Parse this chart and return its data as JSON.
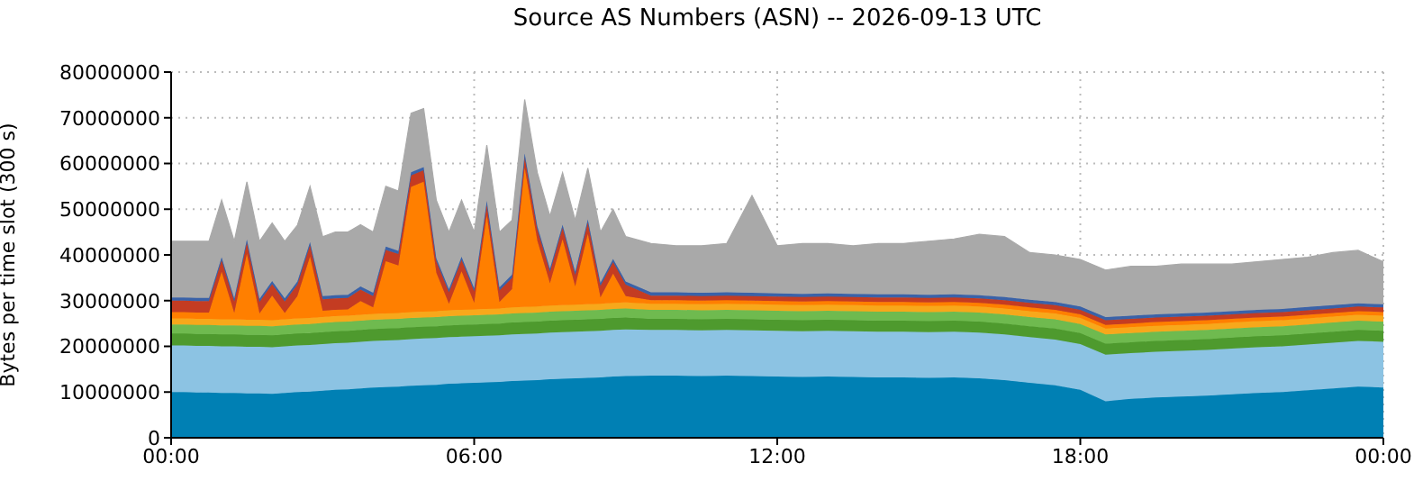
{
  "chart_data": {
    "type": "area",
    "stacked": true,
    "title": "Source AS Numbers (ASN) -- 2026-09-13 UTC",
    "ylabel": "Bytes per time slot (300 s)",
    "x": [
      0,
      0.25,
      0.5,
      0.75,
      1,
      1.25,
      1.5,
      1.75,
      2,
      2.25,
      2.5,
      2.75,
      3,
      3.25,
      3.5,
      3.75,
      4,
      4.25,
      4.5,
      4.75,
      5,
      5.25,
      5.5,
      5.75,
      6,
      6.25,
      6.5,
      6.75,
      7,
      7.25,
      7.5,
      7.75,
      8,
      8.25,
      8.5,
      8.75,
      9,
      9.5,
      10,
      10.5,
      11,
      11.5,
      12,
      12.5,
      13,
      13.5,
      14,
      14.5,
      15,
      15.5,
      16,
      16.5,
      17,
      17.5,
      18,
      18.5,
      19,
      19.5,
      20,
      20.5,
      21,
      21.5,
      22,
      22.5,
      23,
      23.5,
      24
    ],
    "xlim": [
      0,
      24
    ],
    "xticks": [
      {
        "value": 0,
        "label": "00:00"
      },
      {
        "value": 6,
        "label": "06:00"
      },
      {
        "value": 12,
        "label": "12:00"
      },
      {
        "value": 18,
        "label": "18:00"
      },
      {
        "value": 24,
        "label": "00:00"
      }
    ],
    "ylim": [
      0,
      80000000
    ],
    "yticks": [
      0,
      10000000,
      20000000,
      30000000,
      40000000,
      50000000,
      60000000,
      70000000,
      80000000
    ],
    "grid": true,
    "series": [
      {
        "color": "#0080b4",
        "values": [
          10000000.0,
          10000000.0,
          9900000.0,
          9900000.0,
          9800000.0,
          9800000.0,
          9700000.0,
          9700000.0,
          9600000.0,
          9800000.0,
          10000000.0,
          10100000.0,
          10300000.0,
          10500000.0,
          10600000.0,
          10800000.0,
          11000000.0,
          11100000.0,
          11200000.0,
          11400000.0,
          11500000.0,
          11600000.0,
          11800000.0,
          11900000.0,
          12000000.0,
          12100000.0,
          12200000.0,
          12400000.0,
          12500000.0,
          12600000.0,
          12800000.0,
          12900000.0,
          13000000.0,
          13100000.0,
          13200000.0,
          13400000.0,
          13500000.0,
          13600000.0,
          13600000.0,
          13500000.0,
          13600000.0,
          13500000.0,
          13400000.0,
          13300000.0,
          13400000.0,
          13300000.0,
          13200000.0,
          13200000.0,
          13100000.0,
          13200000.0,
          13000000.0,
          12600000.0,
          12000000.0,
          11500000.0,
          10500000.0,
          8000000.0,
          8500000.0,
          8800000.0,
          9000000.0,
          9200000.0,
          9500000.0,
          9800000.0,
          10000000.0,
          10400000.0,
          10800000.0,
          11200000.0,
          11000000.0
        ]
      },
      {
        "color": "#8cc3e3",
        "values": [
          10200000.0,
          10200000.0,
          10200000.0,
          10200000.0,
          10200000.0,
          10200000.0,
          10200000.0,
          10200000.0,
          10200000.0,
          10200000.0,
          10200000.0,
          10200000.0,
          10200000.0,
          10200000.0,
          10200000.0,
          10200000.0,
          10200000.0,
          10200000.0,
          10200000.0,
          10200000.0,
          10200000.0,
          10200000.0,
          10200000.0,
          10200000.0,
          10200000.0,
          10200000.0,
          10200000.0,
          10200000.0,
          10200000.0,
          10200000.0,
          10200000.0,
          10200000.0,
          10200000.0,
          10200000.0,
          10200000.0,
          10200000.0,
          10200000.0,
          10000000.0,
          10000000.0,
          10000000.0,
          10000000.0,
          10000000.0,
          10000000.0,
          10000000.0,
          10000000.0,
          10000000.0,
          10000000.0,
          10000000.0,
          10000000.0,
          10000000.0,
          10000000.0,
          10000000.0,
          10000000.0,
          10000000.0,
          10000000.0,
          10200000.0,
          10000000.0,
          10000000.0,
          10000000.0,
          10000000.0,
          10000000.0,
          10000000.0,
          10000000.0,
          10000000.0,
          10000000.0,
          10000000.0,
          10000000.0
        ]
      },
      {
        "color": "#4e9a2e",
        "values": [
          2600000.0,
          2600000.0,
          2600000.0,
          2600000.0,
          2600000.0,
          2600000.0,
          2600000.0,
          2600000.0,
          2600000.0,
          2600000.0,
          2600000.0,
          2600000.0,
          2600000.0,
          2600000.0,
          2600000.0,
          2600000.0,
          2600000.0,
          2600000.0,
          2600000.0,
          2600000.0,
          2600000.0,
          2600000.0,
          2600000.0,
          2600000.0,
          2600000.0,
          2600000.0,
          2600000.0,
          2600000.0,
          2600000.0,
          2600000.0,
          2600000.0,
          2600000.0,
          2600000.0,
          2600000.0,
          2600000.0,
          2600000.0,
          2600000.0,
          2400000.0,
          2400000.0,
          2400000.0,
          2400000.0,
          2400000.0,
          2400000.0,
          2400000.0,
          2400000.0,
          2400000.0,
          2400000.0,
          2400000.0,
          2400000.0,
          2400000.0,
          2400000.0,
          2400000.0,
          2400000.0,
          2400000.0,
          2400000.0,
          2400000.0,
          2400000.0,
          2400000.0,
          2400000.0,
          2400000.0,
          2400000.0,
          2400000.0,
          2400000.0,
          2400000.0,
          2400000.0,
          2400000.0,
          2400000.0
        ]
      },
      {
        "color": "#6fba4f",
        "values": [
          2000000.0,
          2000000.0,
          2000000.0,
          2000000.0,
          2000000.0,
          2000000.0,
          2000000.0,
          2000000.0,
          2000000.0,
          2000000.0,
          2000000.0,
          2000000.0,
          2000000.0,
          2000000.0,
          2000000.0,
          2000000.0,
          2000000.0,
          2000000.0,
          2000000.0,
          2000000.0,
          2000000.0,
          2000000.0,
          2000000.0,
          2000000.0,
          2000000.0,
          2000000.0,
          2000000.0,
          2000000.0,
          2000000.0,
          2000000.0,
          2000000.0,
          2000000.0,
          2000000.0,
          2000000.0,
          2000000.0,
          2000000.0,
          2000000.0,
          2000000.0,
          2000000.0,
          2000000.0,
          2000000.0,
          2000000.0,
          2000000.0,
          2000000.0,
          2000000.0,
          2000000.0,
          2000000.0,
          2000000.0,
          2000000.0,
          2000000.0,
          2000000.0,
          2000000.0,
          2000000.0,
          2000000.0,
          2000000.0,
          2000000.0,
          2000000.0,
          2000000.0,
          2000000.0,
          2000000.0,
          2000000.0,
          2000000.0,
          2000000.0,
          2000000.0,
          2000000.0,
          2000000.0,
          2000000.0
        ]
      },
      {
        "color": "#f7a81b",
        "values": [
          1300000.0,
          1300000.0,
          1300000.0,
          1300000.0,
          1300000.0,
          1300000.0,
          1300000.0,
          1300000.0,
          1300000.0,
          1300000.0,
          1300000.0,
          1300000.0,
          1300000.0,
          1300000.0,
          1300000.0,
          1300000.0,
          1300000.0,
          1300000.0,
          1300000.0,
          1300000.0,
          1300000.0,
          1300000.0,
          1300000.0,
          1300000.0,
          1300000.0,
          1300000.0,
          1300000.0,
          1300000.0,
          1300000.0,
          1300000.0,
          1300000.0,
          1300000.0,
          1300000.0,
          1300000.0,
          1300000.0,
          1300000.0,
          1300000.0,
          1300000.0,
          1300000.0,
          1300000.0,
          1300000.0,
          1300000.0,
          1300000.0,
          1300000.0,
          1300000.0,
          1300000.0,
          1300000.0,
          1300000.0,
          1300000.0,
          1300000.0,
          1300000.0,
          1300000.0,
          1300000.0,
          1300000.0,
          1300000.0,
          1300000.0,
          1300000.0,
          1300000.0,
          1300000.0,
          1300000.0,
          1300000.0,
          1300000.0,
          1300000.0,
          1300000.0,
          1300000.0,
          1300000.0,
          1300000.0
        ]
      },
      {
        "color": "#ff7f00",
        "values": [
          1400000.0,
          1400000.0,
          1400000.0,
          1400000.0,
          10400000.0,
          1400000.0,
          14400000.0,
          1400000.0,
          5400000.0,
          1400000.0,
          4900000.0,
          13400000.0,
          1400000.0,
          1400000.0,
          1400000.0,
          3000000.0,
          1400000.0,
          11400000.0,
          10400000.0,
          27400000.0,
          28400000.0,
          8400000.0,
          1400000.0,
          8400000.0,
          1400000.0,
          20400000.0,
          1400000.0,
          4000000.0,
          30400000.0,
          14400000.0,
          4900000.0,
          14400000.0,
          4000000.0,
          15400000.0,
          1400000.0,
          6400000.0,
          1400000.0,
          800000.0,
          800000.0,
          800000.0,
          800000.0,
          800000.0,
          800000.0,
          800000.0,
          800000.0,
          800000.0,
          800000.0,
          800000.0,
          800000.0,
          800000.0,
          800000.0,
          800000.0,
          800000.0,
          800000.0,
          800000.0,
          800000.0,
          800000.0,
          800000.0,
          800000.0,
          800000.0,
          800000.0,
          800000.0,
          800000.0,
          800000.0,
          800000.0,
          800000.0,
          800000.0
        ]
      },
      {
        "color": "#c43c22",
        "values": [
          2500000.0,
          2500000.0,
          2500000.0,
          2500000.0,
          2500000.0,
          2500000.0,
          2500000.0,
          2500000.0,
          2500000.0,
          2500000.0,
          2500000.0,
          2500000.0,
          2500000.0,
          2500000.0,
          2500000.0,
          2500000.0,
          2500000.0,
          2500000.0,
          2500000.0,
          2500000.0,
          2500000.0,
          2500000.0,
          2500000.0,
          2500000.0,
          2500000.0,
          2500000.0,
          2500000.0,
          2500000.0,
          2500000.0,
          2500000.0,
          2500000.0,
          2500000.0,
          2500000.0,
          2500000.0,
          2500000.0,
          2500000.0,
          2500000.0,
          1000000.0,
          1000000.0,
          1000000.0,
          1000000.0,
          1000000.0,
          1000000.0,
          1000000.0,
          1000000.0,
          1000000.0,
          1000000.0,
          1000000.0,
          1000000.0,
          1000000.0,
          1000000.0,
          1000000.0,
          1000000.0,
          1000000.0,
          1000000.0,
          1000000.0,
          1000000.0,
          1000000.0,
          1000000.0,
          1000000.0,
          1000000.0,
          1000000.0,
          1000000.0,
          1000000.0,
          1000000.0,
          1000000.0,
          1000000.0
        ]
      },
      {
        "color": "#3a62a8",
        "values": [
          700000.0,
          700000.0,
          700000.0,
          700000.0,
          700000.0,
          700000.0,
          700000.0,
          700000.0,
          700000.0,
          700000.0,
          700000.0,
          700000.0,
          700000.0,
          700000.0,
          700000.0,
          700000.0,
          700000.0,
          700000.0,
          700000.0,
          700000.0,
          700000.0,
          700000.0,
          700000.0,
          700000.0,
          700000.0,
          700000.0,
          700000.0,
          700000.0,
          700000.0,
          700000.0,
          700000.0,
          700000.0,
          700000.0,
          700000.0,
          700000.0,
          700000.0,
          700000.0,
          700000.0,
          700000.0,
          700000.0,
          700000.0,
          700000.0,
          700000.0,
          700000.0,
          700000.0,
          700000.0,
          700000.0,
          700000.0,
          700000.0,
          700000.0,
          700000.0,
          700000.0,
          700000.0,
          700000.0,
          700000.0,
          700000.0,
          700000.0,
          700000.0,
          700000.0,
          700000.0,
          700000.0,
          700000.0,
          700000.0,
          700000.0,
          700000.0,
          700000.0,
          700000.0
        ]
      },
      {
        "color": "#a9a9a9",
        "values": [
          12300000.0,
          12300000.0,
          12400000.0,
          12400000.0,
          12500000.0,
          12500000.0,
          12600000.0,
          12600000.0,
          12700000.0,
          12500000.0,
          12300000.0,
          12200000.0,
          13000000.0,
          13800000.0,
          13700000.0,
          13500000.0,
          13300000.0,
          13200000.0,
          13100000.0,
          12900000.0,
          12800000.0,
          12700000.0,
          12500000.0,
          12400000.0,
          12300000.0,
          12200000.0,
          12100000.0,
          11900000.0,
          11800000.0,
          11700000.0,
          11500000.0,
          11400000.0,
          11300000.0,
          11200000.0,
          11100000.0,
          10900000.0,
          9800000.0,
          10700000.0,
          10200000.0,
          10300000.0,
          10700000.0,
          21300000.0,
          10400000.0,
          11000000.0,
          10900000.0,
          10500000.0,
          11100000.0,
          11100000.0,
          11700000.0,
          12100000.0,
          13300000.0,
          13200000.0,
          10300000.0,
          10300000.0,
          10300000.0,
          10300000.0,
          10800000.0,
          10500000.0,
          10800000.0,
          10600000.0,
          10300000.0,
          10500000.0,
          10800000.0,
          10900000.0,
          11500000.0,
          11600000.0,
          9300000.0
        ]
      }
    ]
  }
}
